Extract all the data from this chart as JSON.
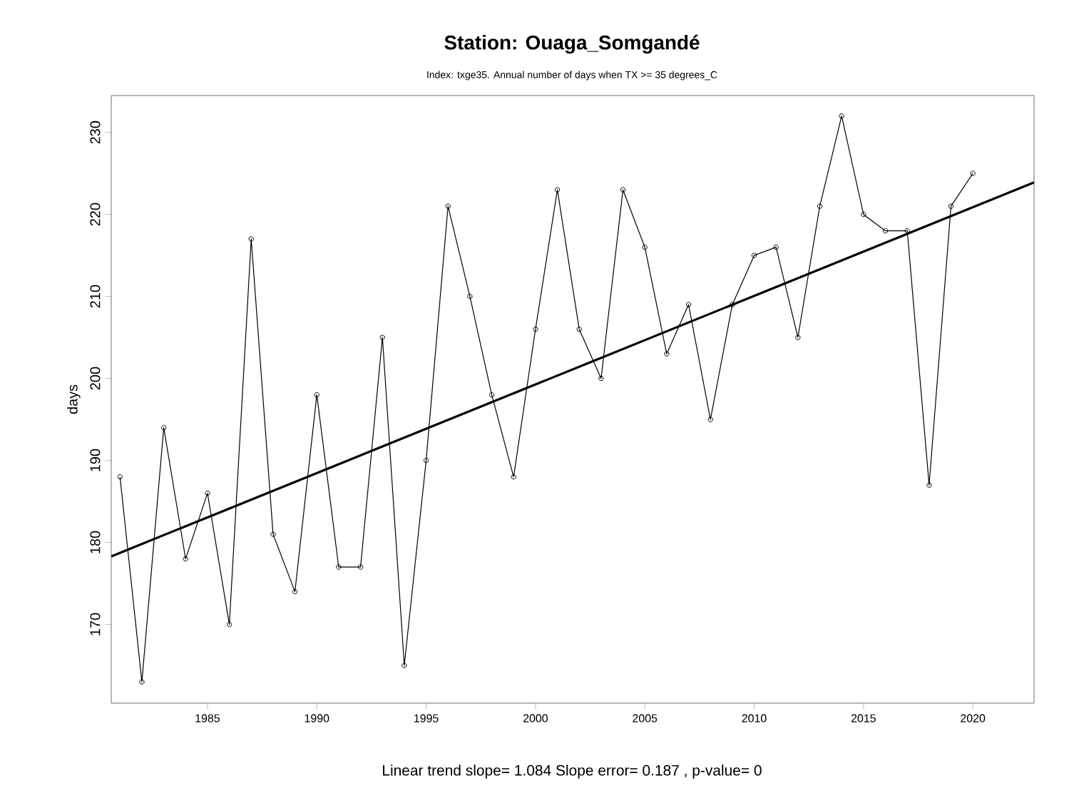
{
  "chart_data": {
    "type": "line",
    "title": "Station: Ouaga_Somgandé",
    "subtitle": "Index: txge35. Annual number of days when TX >= 35 degrees_C",
    "ylabel": "days",
    "x": [
      1981,
      1982,
      1983,
      1984,
      1985,
      1986,
      1987,
      1988,
      1989,
      1990,
      1991,
      1992,
      1993,
      1994,
      1995,
      1996,
      1997,
      1998,
      1999,
      2000,
      2001,
      2002,
      2003,
      2004,
      2005,
      2006,
      2007,
      2008,
      2009,
      2010,
      2011,
      2012,
      2013,
      2014,
      2015,
      2016,
      2017,
      2018,
      2019,
      2020
    ],
    "series": [
      {
        "color": "#000000",
        "marker": "circle",
        "values": [
          188,
          163,
          194,
          178,
          186,
          170,
          217,
          181,
          174,
          198,
          177,
          177,
          205,
          165,
          190,
          221,
          210,
          198,
          188,
          206,
          223,
          206,
          200,
          223,
          216,
          203,
          209,
          195,
          209,
          215,
          216,
          205,
          221,
          232,
          220,
          218,
          218,
          187,
          221,
          225
        ]
      },
      {
        "type": "line",
        "color": "#000000",
        "marker": "none",
        "x": [
          1980.6,
          2022.8
        ],
        "values": [
          178.3,
          223.9
        ]
      }
    ],
    "xlim": [
      1980.6,
      2022.8
    ],
    "ylim": [
      160.4,
      234.5
    ],
    "xticks": [
      1985,
      1990,
      1995,
      2000,
      2005,
      2010,
      2015,
      2020
    ],
    "yticks": [
      170,
      180,
      190,
      200,
      210,
      220,
      230
    ],
    "grid": false,
    "annotations": [
      "Linear trend slope= 1.084    Slope error= 0.187 ,   p-value= 0"
    ]
  }
}
